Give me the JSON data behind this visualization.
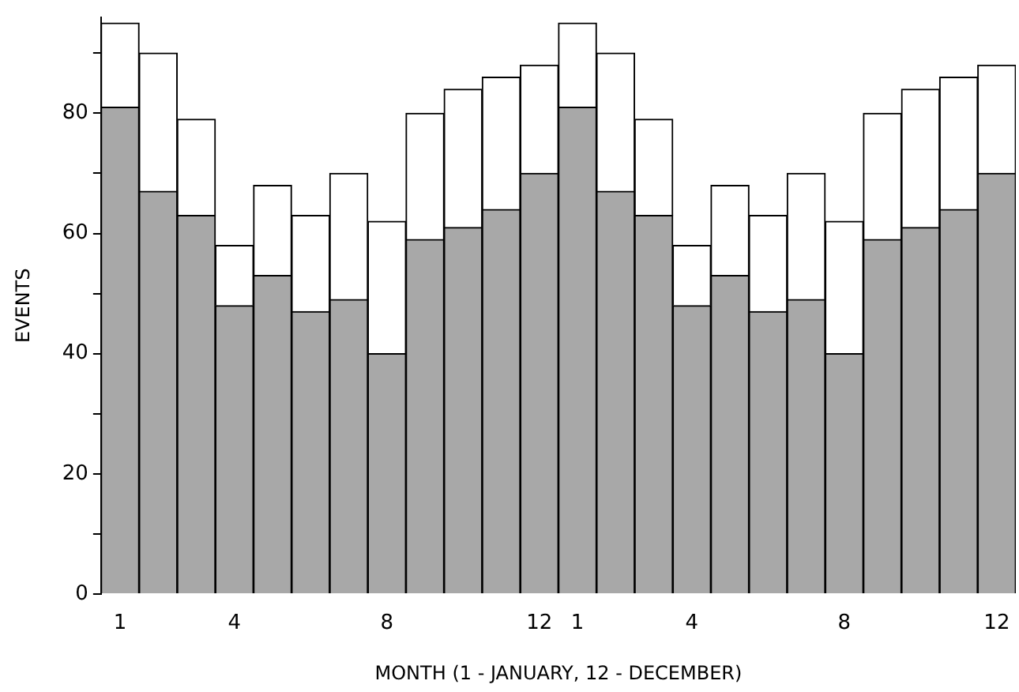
{
  "chart_data": {
    "type": "bar",
    "stacked": true,
    "xlabel": "MONTH (1 - JANUARY, 12 - DECEMBER)",
    "ylabel": "EVENTS",
    "categories": [
      "1",
      null,
      null,
      "4",
      null,
      null,
      null,
      "8",
      null,
      null,
      null,
      "12",
      "1",
      null,
      null,
      "4",
      null,
      null,
      null,
      "8",
      null,
      null,
      null,
      "12"
    ],
    "series": [
      {
        "color": "#a8a8a8",
        "values": [
          81,
          67,
          63,
          48,
          53,
          47,
          49,
          40,
          59,
          61,
          64,
          70,
          81,
          67,
          63,
          48,
          53,
          47,
          49,
          40,
          59,
          61,
          64,
          70
        ]
      },
      {
        "color": "#ffffff",
        "values": [
          14,
          23,
          16,
          10,
          15,
          16,
          21,
          22,
          21,
          23,
          22,
          18,
          14,
          23,
          16,
          10,
          15,
          16,
          21,
          22,
          21,
          23,
          22,
          18
        ]
      }
    ],
    "ylim": [
      0,
      96
    ],
    "yticks": [
      0,
      {
        "value": 10,
        "label": null
      },
      20,
      {
        "value": 30,
        "label": null
      },
      40,
      {
        "value": 50,
        "label": null
      },
      60,
      {
        "value": 70,
        "label": null
      },
      80,
      {
        "value": 90,
        "label": null
      }
    ],
    "grid": false
  }
}
